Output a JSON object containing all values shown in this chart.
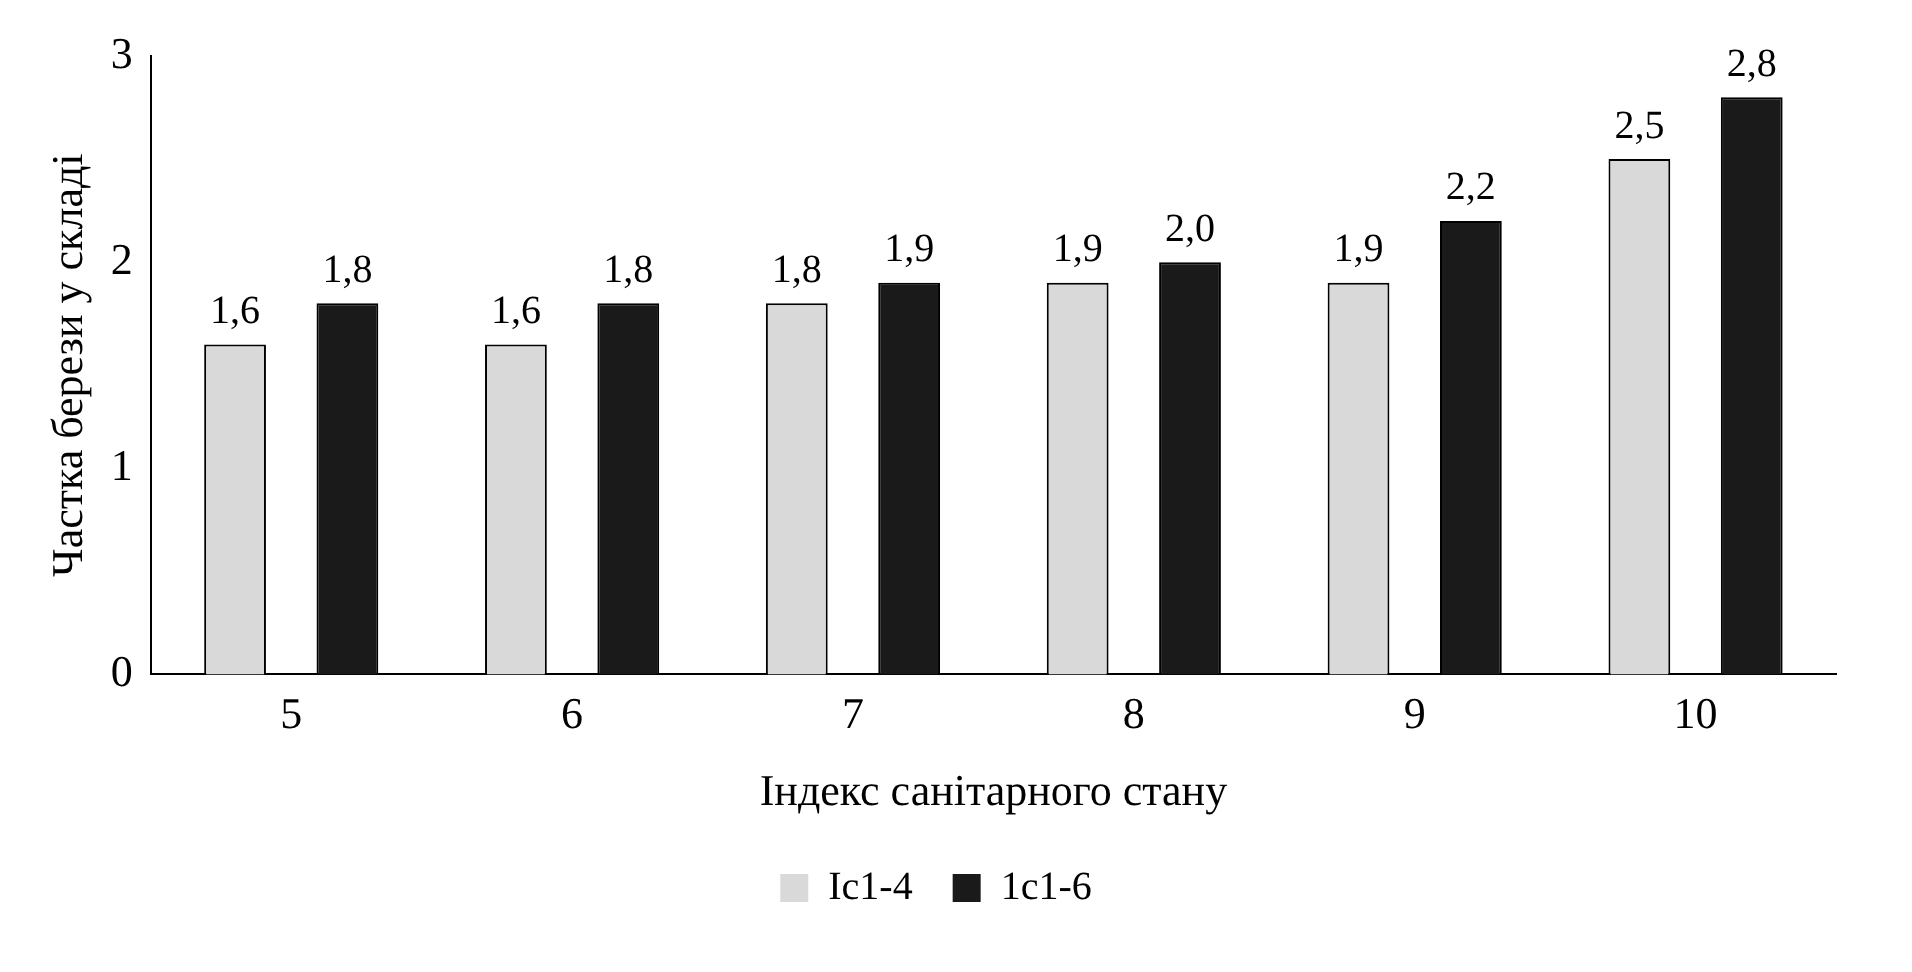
{
  "chart_data": {
    "type": "bar",
    "xlabel": "Індекс санітарного стану",
    "ylabel": "Частка берези у складі",
    "categories": [
      "5",
      "6",
      "7",
      "8",
      "9",
      "10"
    ],
    "series": [
      {
        "name": "Ic1-4",
        "color": "#d9d9d9",
        "values": [
          1.6,
          1.6,
          1.8,
          1.9,
          1.9,
          2.5
        ],
        "value_labels": [
          "1,6",
          "1,6",
          "1,8",
          "1,9",
          "1,9",
          "2,5"
        ]
      },
      {
        "name": "1c1-6",
        "color": "#1a1a1a",
        "values": [
          1.8,
          1.8,
          1.9,
          2.0,
          2.2,
          2.8
        ],
        "value_labels": [
          "1,8",
          "1,8",
          "1,9",
          "2,0",
          "2,2",
          "2,8"
        ]
      }
    ],
    "ylim": [
      0,
      3
    ],
    "yticks": [
      0,
      1,
      2,
      3
    ],
    "legend": "bottom"
  }
}
